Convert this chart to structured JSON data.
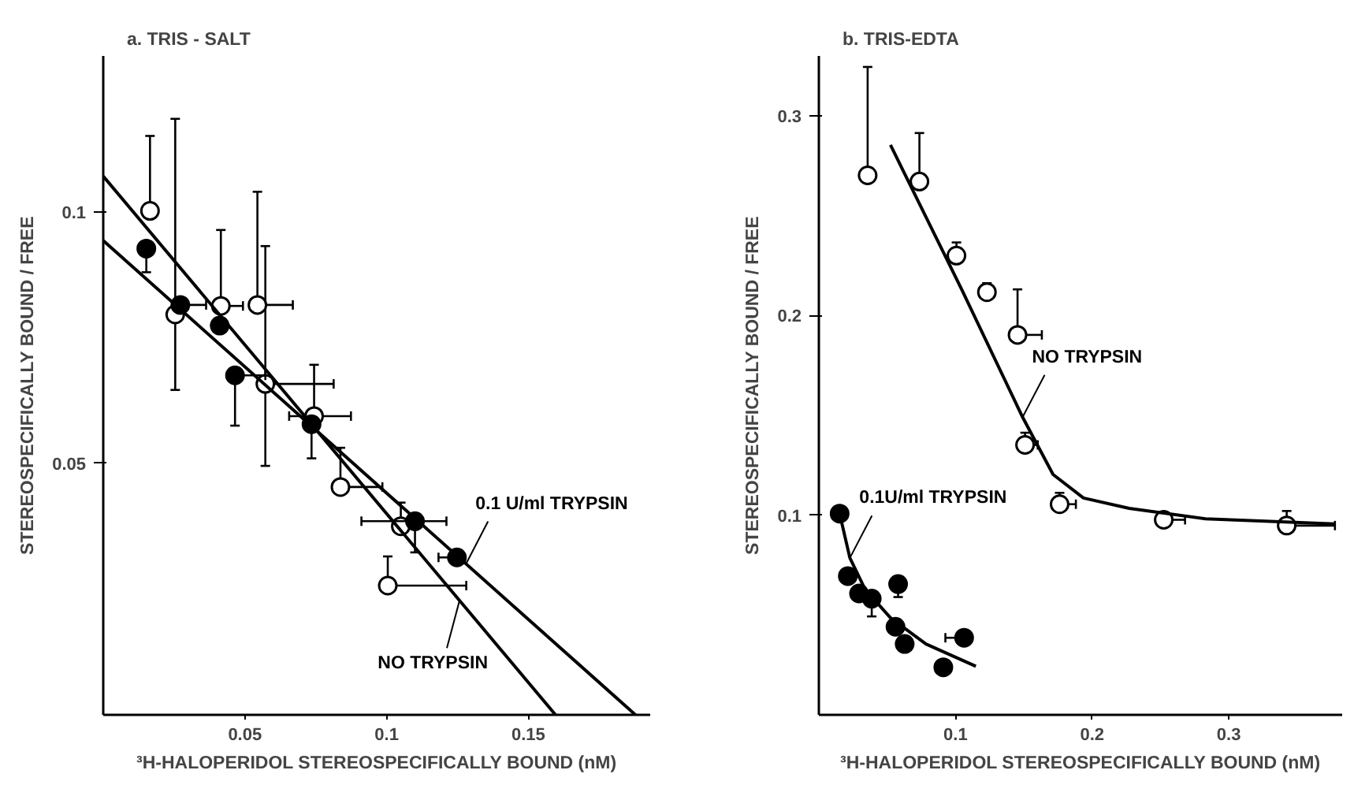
{
  "chart_data": [
    {
      "type": "scatter",
      "title": "a.  TRIS - SALT",
      "xlabel": "³H-HALOPERIDOL STEREOSPECIFICALLY BOUND (nM)",
      "ylabel": "STEREOSPECIFICALLY BOUND / FREE",
      "xlim": [
        0,
        0.193
      ],
      "ylim": [
        0,
        0.131
      ],
      "xticks": [
        0.05,
        0.1,
        0.15
      ],
      "yticks": [
        0.05,
        0.1
      ],
      "annotations": [
        {
          "text": "0.1 U/ml TRYPSIN",
          "x": 0.128,
          "y": 0.03
        },
        {
          "text": "NO TRYPSIN",
          "x": 0.1257,
          "y": 0.0227
        }
      ],
      "series": [
        {
          "marker": "circle",
          "color": "#ffffff",
          "x": [
            0.0165,
            0.0254,
            0.0415,
            0.0544,
            0.0572,
            0.0744,
            0.0837,
            0.105,
            0.1004
          ],
          "values": [
            0.1002,
            0.0796,
            0.0813,
            0.0815,
            0.0658,
            0.0594,
            0.0453,
            0.0375,
            0.0257
          ],
          "errors": [
            [
              0.1002,
              0.1151
            ],
            [
              0.0646,
              0.1185
            ],
            [
              0.0813,
              0.0964
            ],
            [
              0.0815,
              0.104
            ],
            [
              0.0495,
              0.0932
            ],
            [
              0.0594,
              0.0696
            ],
            [
              0.0453,
              0.0531
            ],
            [
              0.0375,
              0.0422
            ],
            [
              0.0257,
              0.0315
            ]
          ],
          "xerrors": [
            null,
            null,
            [
              0.0415,
              0.0493
            ],
            [
              0.0544,
              0.0669
            ],
            [
              0.0572,
              0.0813
            ],
            [
              0.0656,
              0.0874
            ],
            [
              0.0837,
              0.0985
            ],
            null,
            [
              0.1004,
              0.1281
            ]
          ]
        },
        {
          "marker": "circle",
          "color": "#000000",
          "x": [
            0.0152,
            0.0272,
            0.0411,
            0.0465,
            0.0735,
            0.11,
            0.1248
          ],
          "values": [
            0.0927,
            0.0815,
            0.0774,
            0.0675,
            0.0578,
            0.0385,
            0.0313
          ],
          "errors": [
            [
              0.088,
              0.0927
            ],
            null,
            null,
            [
              0.0575,
              0.0675
            ],
            [
              0.051,
              0.0578
            ],
            [
              0.0323,
              0.0385
            ],
            null
          ],
          "xerrors": [
            null,
            [
              0.0272,
              0.0363
            ],
            null,
            [
              0.0465,
              0.0572
            ],
            null,
            [
              0.0911,
              0.1211
            ],
            [
              0.1183,
              0.1248
            ]
          ]
        },
        {
          "type": "line",
          "color": "#000000",
          "x": [
            0,
            0.1596
          ],
          "values": [
            0.1071,
            0
          ]
        },
        {
          "type": "line",
          "color": "#000000",
          "x": [
            0,
            0.1878
          ],
          "values": [
            0.0943,
            0
          ]
        }
      ]
    },
    {
      "type": "scatter",
      "title": "b. TRIS-EDTA",
      "xlabel": "³H-HALOPERIDOL STEREOSPECIFICALLY BOUND (nM)",
      "ylabel": "STEREOSPECIFICALLY BOUND / FREE",
      "xlim": [
        0,
        0.383
      ],
      "ylim": [
        0,
        0.33
      ],
      "xticks": [
        0.1,
        0.2,
        0.3
      ],
      "yticks": [
        0.1,
        0.2,
        0.3
      ],
      "annotations": [
        {
          "text": "NO TRYPSIN",
          "x": 0.1491,
          "y": 0.1491
        },
        {
          "text": "0.1U/ml TRYPSIN",
          "x": 0.0227,
          "y": 0.0786
        }
      ],
      "series": [
        {
          "marker": "circle",
          "color": "#ffffff",
          "x": [
            0.0357,
            0.0736,
            0.1007,
            0.123,
            0.1454,
            0.1509,
            0.1762,
            0.2524,
            0.3424
          ],
          "values": [
            0.2702,
            0.2671,
            0.23,
            0.2117,
            0.1903,
            0.1352,
            0.1055,
            0.0977,
            0.0948
          ],
          "errors": [
            [
              0.2702,
              0.3245
            ],
            [
              0.2671,
              0.2914
            ],
            [
              0.23,
              0.2366
            ],
            [
              0.2117,
              0.2162
            ],
            [
              0.1903,
              0.2131
            ],
            [
              0.1352,
              0.1413
            ],
            [
              0.1055,
              0.1112
            ],
            null,
            [
              0.0948,
              0.1021
            ]
          ],
          "xerrors": [
            [
              0.0357,
              0.041
            ],
            null,
            null,
            null,
            [
              0.1454,
              0.1632
            ],
            [
              0.1509,
              0.1602
            ],
            [
              0.1762,
              0.1881
            ],
            [
              0.2524,
              0.268
            ],
            [
              0.3424,
              0.3777
            ]
          ]
        },
        {
          "marker": "circle",
          "color": "#000000",
          "x": [
            0.0152,
            0.0212,
            0.0294,
            0.0387,
            0.058,
            0.0561,
            0.0628,
            0.0911,
            0.1063
          ],
          "values": [
            0.1008,
            0.0695,
            0.0608,
            0.0582,
            0.0655,
            0.0441,
            0.0355,
            0.0238,
            0.0386
          ],
          "errors": [
            null,
            null,
            null,
            [
              0.0493,
              0.0582
            ],
            [
              0.059,
              0.0655
            ],
            null,
            null,
            null,
            null
          ],
          "xerrors": [
            null,
            null,
            null,
            null,
            null,
            null,
            null,
            null,
            [
              0.0926,
              0.1063
            ]
          ]
        },
        {
          "type": "line",
          "color": "#000000",
          "x": [
            0.0524,
            0.1045,
            0.1491,
            0.1714,
            0.1937,
            0.2271,
            0.2829,
            0.3777
          ],
          "values": [
            0.2854,
            0.2131,
            0.1491,
            0.1204,
            0.1086,
            0.1034,
            0.0982,
            0.0956
          ]
        },
        {
          "type": "line",
          "color": "#000000",
          "x": [
            0.0152,
            0.0227,
            0.0338,
            0.0524,
            0.0784,
            0.1149
          ],
          "values": [
            0.1008,
            0.0786,
            0.0629,
            0.0486,
            0.0355,
            0.0243
          ]
        }
      ]
    }
  ]
}
